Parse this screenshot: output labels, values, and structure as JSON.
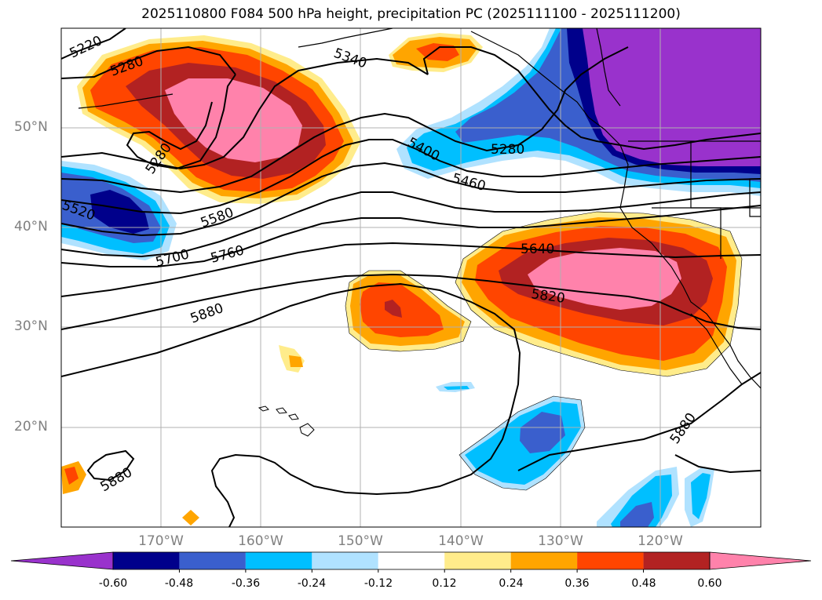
{
  "title": "2025110800 F084 500 hPa height, precipitation PC (2025111100 - 2025111200)",
  "axes": {
    "lat_labels": [
      "50°N",
      "40°N",
      "30°N",
      "20°N"
    ],
    "lon_labels": [
      "170°W",
      "160°W",
      "150°W",
      "140°W",
      "130°W",
      "120°W"
    ]
  },
  "contour_labels": [
    "5220",
    "5280",
    "5340",
    "5280",
    "5400",
    "5280",
    "5460",
    "5520",
    "5580",
    "5640",
    "5700",
    "5760",
    "5820",
    "5880",
    "5880",
    "5880"
  ],
  "colorbar": {
    "ticks": [
      "-0.60",
      "-0.48",
      "-0.36",
      "-0.24",
      "-0.12",
      "0.12",
      "0.24",
      "0.36",
      "0.48",
      "0.60"
    ],
    "colors": [
      "#9932cc",
      "#00008b",
      "#3a5fcd",
      "#00bfff",
      "#b0e2ff",
      "#ffffff",
      "#ffec8b",
      "#ffa500",
      "#ff4500",
      "#b22222",
      "#ff82ab"
    ]
  }
}
